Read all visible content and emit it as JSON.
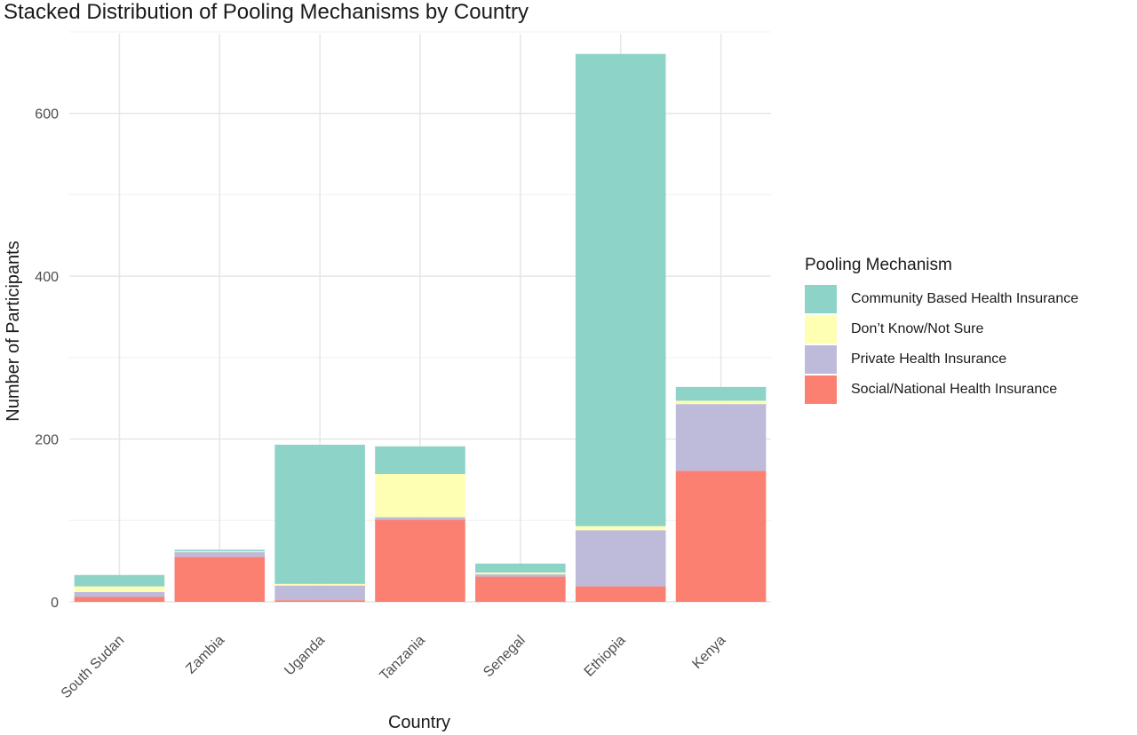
{
  "chart_data": {
    "type": "bar",
    "stacked": true,
    "title": "Stacked Distribution of Pooling Mechanisms by Country",
    "xlabel": "Country",
    "ylabel": "Number of Participants",
    "ylim": [
      0,
      700
    ],
    "yticks": [
      0,
      200,
      400,
      600
    ],
    "grid": true,
    "legend_position": "right",
    "legend_title": "Pooling Mechanism",
    "categories": [
      "South Sudan",
      "Zambia",
      "Uganda",
      "Tanzania",
      "Senegal",
      "Ethiopia",
      "Kenya"
    ],
    "series": [
      {
        "name": "Social/National Health Insurance",
        "color": "#FB8072",
        "values": [
          6,
          55,
          2,
          101,
          31,
          19,
          161
        ]
      },
      {
        "name": "Private Health Insurance",
        "color": "#BEBADA",
        "values": [
          6,
          6,
          18,
          3,
          3,
          69,
          82
        ]
      },
      {
        "name": "Don’t Know/Not Sure",
        "color": "#FFFFB3",
        "values": [
          7,
          1,
          2,
          53,
          2,
          5,
          4
        ]
      },
      {
        "name": "Community Based Health Insurance",
        "color": "#8DD3C7",
        "values": [
          14,
          2,
          171,
          34,
          11,
          580,
          17
        ]
      }
    ],
    "legend_order": [
      "Community Based Health Insurance",
      "Don’t Know/Not Sure",
      "Private Health Insurance",
      "Social/National Health Insurance"
    ]
  }
}
